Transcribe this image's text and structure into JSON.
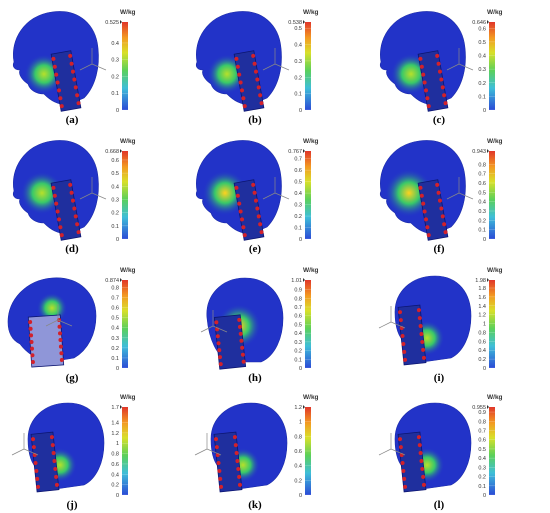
{
  "unit": "W/kg",
  "colors": {
    "phone": "#1f2f9e",
    "antenna_dot": "#d2212b",
    "head_base": "#2233c8"
  },
  "panels": [
    {
      "label": "(a)",
      "max_label": "0.525",
      "ticks": [
        "0.4",
        "0.3",
        "0.2",
        "0.1",
        "0"
      ],
      "tick_values": [
        0.4,
        0.3,
        0.2,
        0.1,
        0
      ],
      "max": 0.525,
      "view": "side-left-phone-back",
      "hotspot": 0.4
    },
    {
      "label": "(b)",
      "max_label": "0.538",
      "ticks": [
        "0.5",
        "0.4",
        "0.3",
        "0.2",
        "0.1",
        "0"
      ],
      "tick_values": [
        0.5,
        0.4,
        0.3,
        0.2,
        0.1,
        0
      ],
      "max": 0.538,
      "view": "side-left-phone-back",
      "hotspot": 0.4
    },
    {
      "label": "(c)",
      "max_label": "0.646",
      "ticks": [
        "0.6",
        "0.5",
        "0.4",
        "0.3",
        "0.2",
        "0.1",
        "0"
      ],
      "tick_values": [
        0.6,
        0.5,
        0.4,
        0.3,
        0.2,
        0.1,
        0
      ],
      "max": 0.646,
      "view": "side-left-phone-back",
      "hotspot": 0.45
    },
    {
      "label": "(d)",
      "max_label": "0.668",
      "ticks": [
        "0.6",
        "0.5",
        "0.4",
        "0.3",
        "0.2",
        "0.1",
        "0"
      ],
      "tick_values": [
        0.6,
        0.5,
        0.4,
        0.3,
        0.2,
        0.1,
        0
      ],
      "max": 0.668,
      "view": "side-left-phone-mid",
      "hotspot": 0.55
    },
    {
      "label": "(e)",
      "max_label": "0.767",
      "ticks": [
        "0.7",
        "0.6",
        "0.5",
        "0.4",
        "0.3",
        "0.2",
        "0.1",
        "0"
      ],
      "tick_values": [
        0.7,
        0.6,
        0.5,
        0.4,
        0.3,
        0.2,
        0.1,
        0
      ],
      "max": 0.767,
      "view": "side-left-phone-mid",
      "hotspot": 0.65
    },
    {
      "label": "(f)",
      "max_label": "0.943",
      "ticks": [
        "0.8",
        "0.7",
        "0.6",
        "0.5",
        "0.4",
        "0.3",
        "0.2",
        "0.1",
        "0"
      ],
      "tick_values": [
        0.8,
        0.7,
        0.6,
        0.5,
        0.4,
        0.3,
        0.2,
        0.1,
        0
      ],
      "max": 0.943,
      "view": "side-left-phone-mid",
      "hotspot": 0.8
    },
    {
      "label": "(g)",
      "max_label": "0.874",
      "ticks": [
        "0.8",
        "0.7",
        "0.6",
        "0.5",
        "0.4",
        "0.3",
        "0.2",
        "0.1",
        "0"
      ],
      "tick_values": [
        0.8,
        0.7,
        0.6,
        0.5,
        0.4,
        0.3,
        0.2,
        0.1,
        0
      ],
      "max": 0.874,
      "view": "side-left-phone-front",
      "hotspot": 0.3
    },
    {
      "label": "(h)",
      "max_label": "1.01",
      "ticks": [
        "0.9",
        "0.8",
        "0.7",
        "0.6",
        "0.5",
        "0.4",
        "0.3",
        "0.2",
        "0.1",
        "0"
      ],
      "tick_values": [
        0.9,
        0.8,
        0.7,
        0.6,
        0.5,
        0.4,
        0.3,
        0.2,
        0.1,
        0
      ],
      "max": 1.01,
      "view": "back-right-phone",
      "hotspot": 0.8
    },
    {
      "label": "(i)",
      "max_label": "1.98",
      "ticks": [
        "1.8",
        "1.6",
        "1.4",
        "1.2",
        "1",
        "0.8",
        "0.6",
        "0.4",
        "0.2",
        "0"
      ],
      "tick_values": [
        1.8,
        1.6,
        1.4,
        1.2,
        1,
        0.8,
        0.6,
        0.4,
        0.2,
        0
      ],
      "max": 1.98,
      "view": "side-right-phone",
      "hotspot": 0.35
    },
    {
      "label": "(j)",
      "max_label": "1.7",
      "ticks": [
        "1.4",
        "1.2",
        "1",
        "0.8",
        "0.6",
        "0.4",
        "0.2",
        "0"
      ],
      "tick_values": [
        1.4,
        1.2,
        1,
        0.8,
        0.6,
        0.4,
        0.2,
        0
      ],
      "max": 1.7,
      "view": "side-right-phone",
      "hotspot": 0.3
    },
    {
      "label": "(k)",
      "max_label": "1.2",
      "ticks": [
        "1",
        "0.8",
        "0.6",
        "0.4",
        "0.2",
        "0"
      ],
      "tick_values": [
        1,
        0.8,
        0.6,
        0.4,
        0.2,
        0
      ],
      "max": 1.2,
      "view": "side-right-phone",
      "hotspot": 0.3
    },
    {
      "label": "(l)",
      "max_label": "0.955",
      "ticks": [
        "0.9",
        "0.8",
        "0.7",
        "0.6",
        "0.5",
        "0.4",
        "0.3",
        "0.2",
        "0.1",
        "0"
      ],
      "tick_values": [
        0.9,
        0.8,
        0.7,
        0.6,
        0.5,
        0.4,
        0.3,
        0.2,
        0.1,
        0
      ],
      "max": 0.955,
      "view": "side-right-phone",
      "hotspot": 0.35
    }
  ]
}
